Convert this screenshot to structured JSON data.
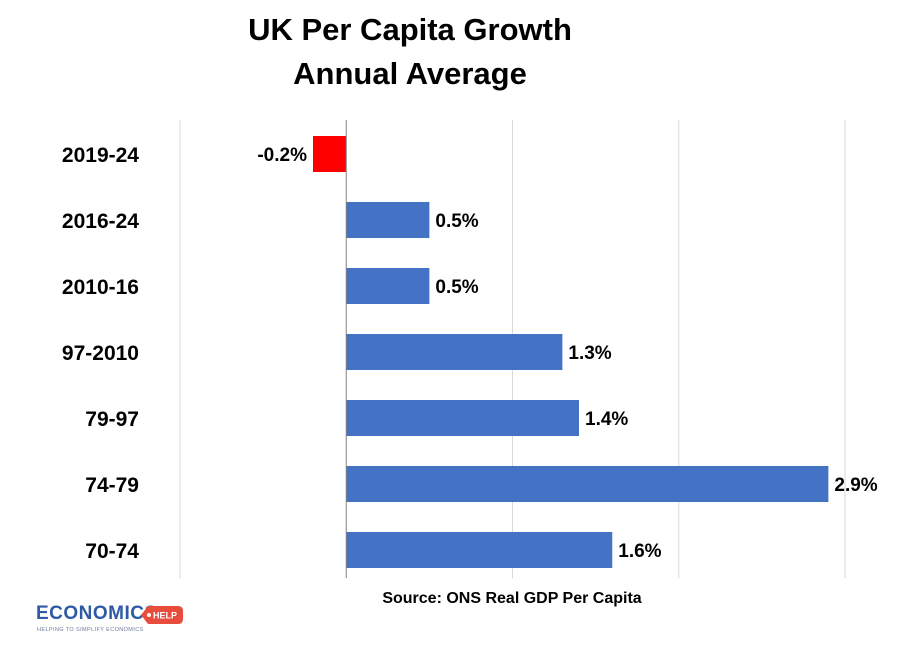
{
  "chart_data": {
    "type": "bar",
    "orientation": "horizontal",
    "title": [
      "UK Per Capita Growth",
      "Annual Average"
    ],
    "categories": [
      "2019-24",
      "2016-24",
      "2010-16",
      "97-2010",
      "79-97",
      "74-79",
      "70-74"
    ],
    "values": [
      -0.2,
      0.5,
      0.5,
      1.3,
      1.4,
      2.9,
      1.6
    ],
    "data_labels": [
      "-0.2%",
      "0.5%",
      "0.5%",
      "1.3%",
      "1.4%",
      "2.9%",
      "1.6%"
    ],
    "xlim": [
      -1.0,
      3.0
    ],
    "grid": true,
    "xlabel": "",
    "ylabel": "",
    "colors": {
      "positive": "#4472c4",
      "negative": "#ff0000",
      "grid": "#d9d9d9",
      "axis": "#808080"
    },
    "source": "Source: ONS Real GDP Per Capita"
  },
  "logo": {
    "name": "ECONOMICS",
    "badge": "HELP",
    "tagline": "HELPING TO SIMPLIFY ECONOMICS"
  }
}
